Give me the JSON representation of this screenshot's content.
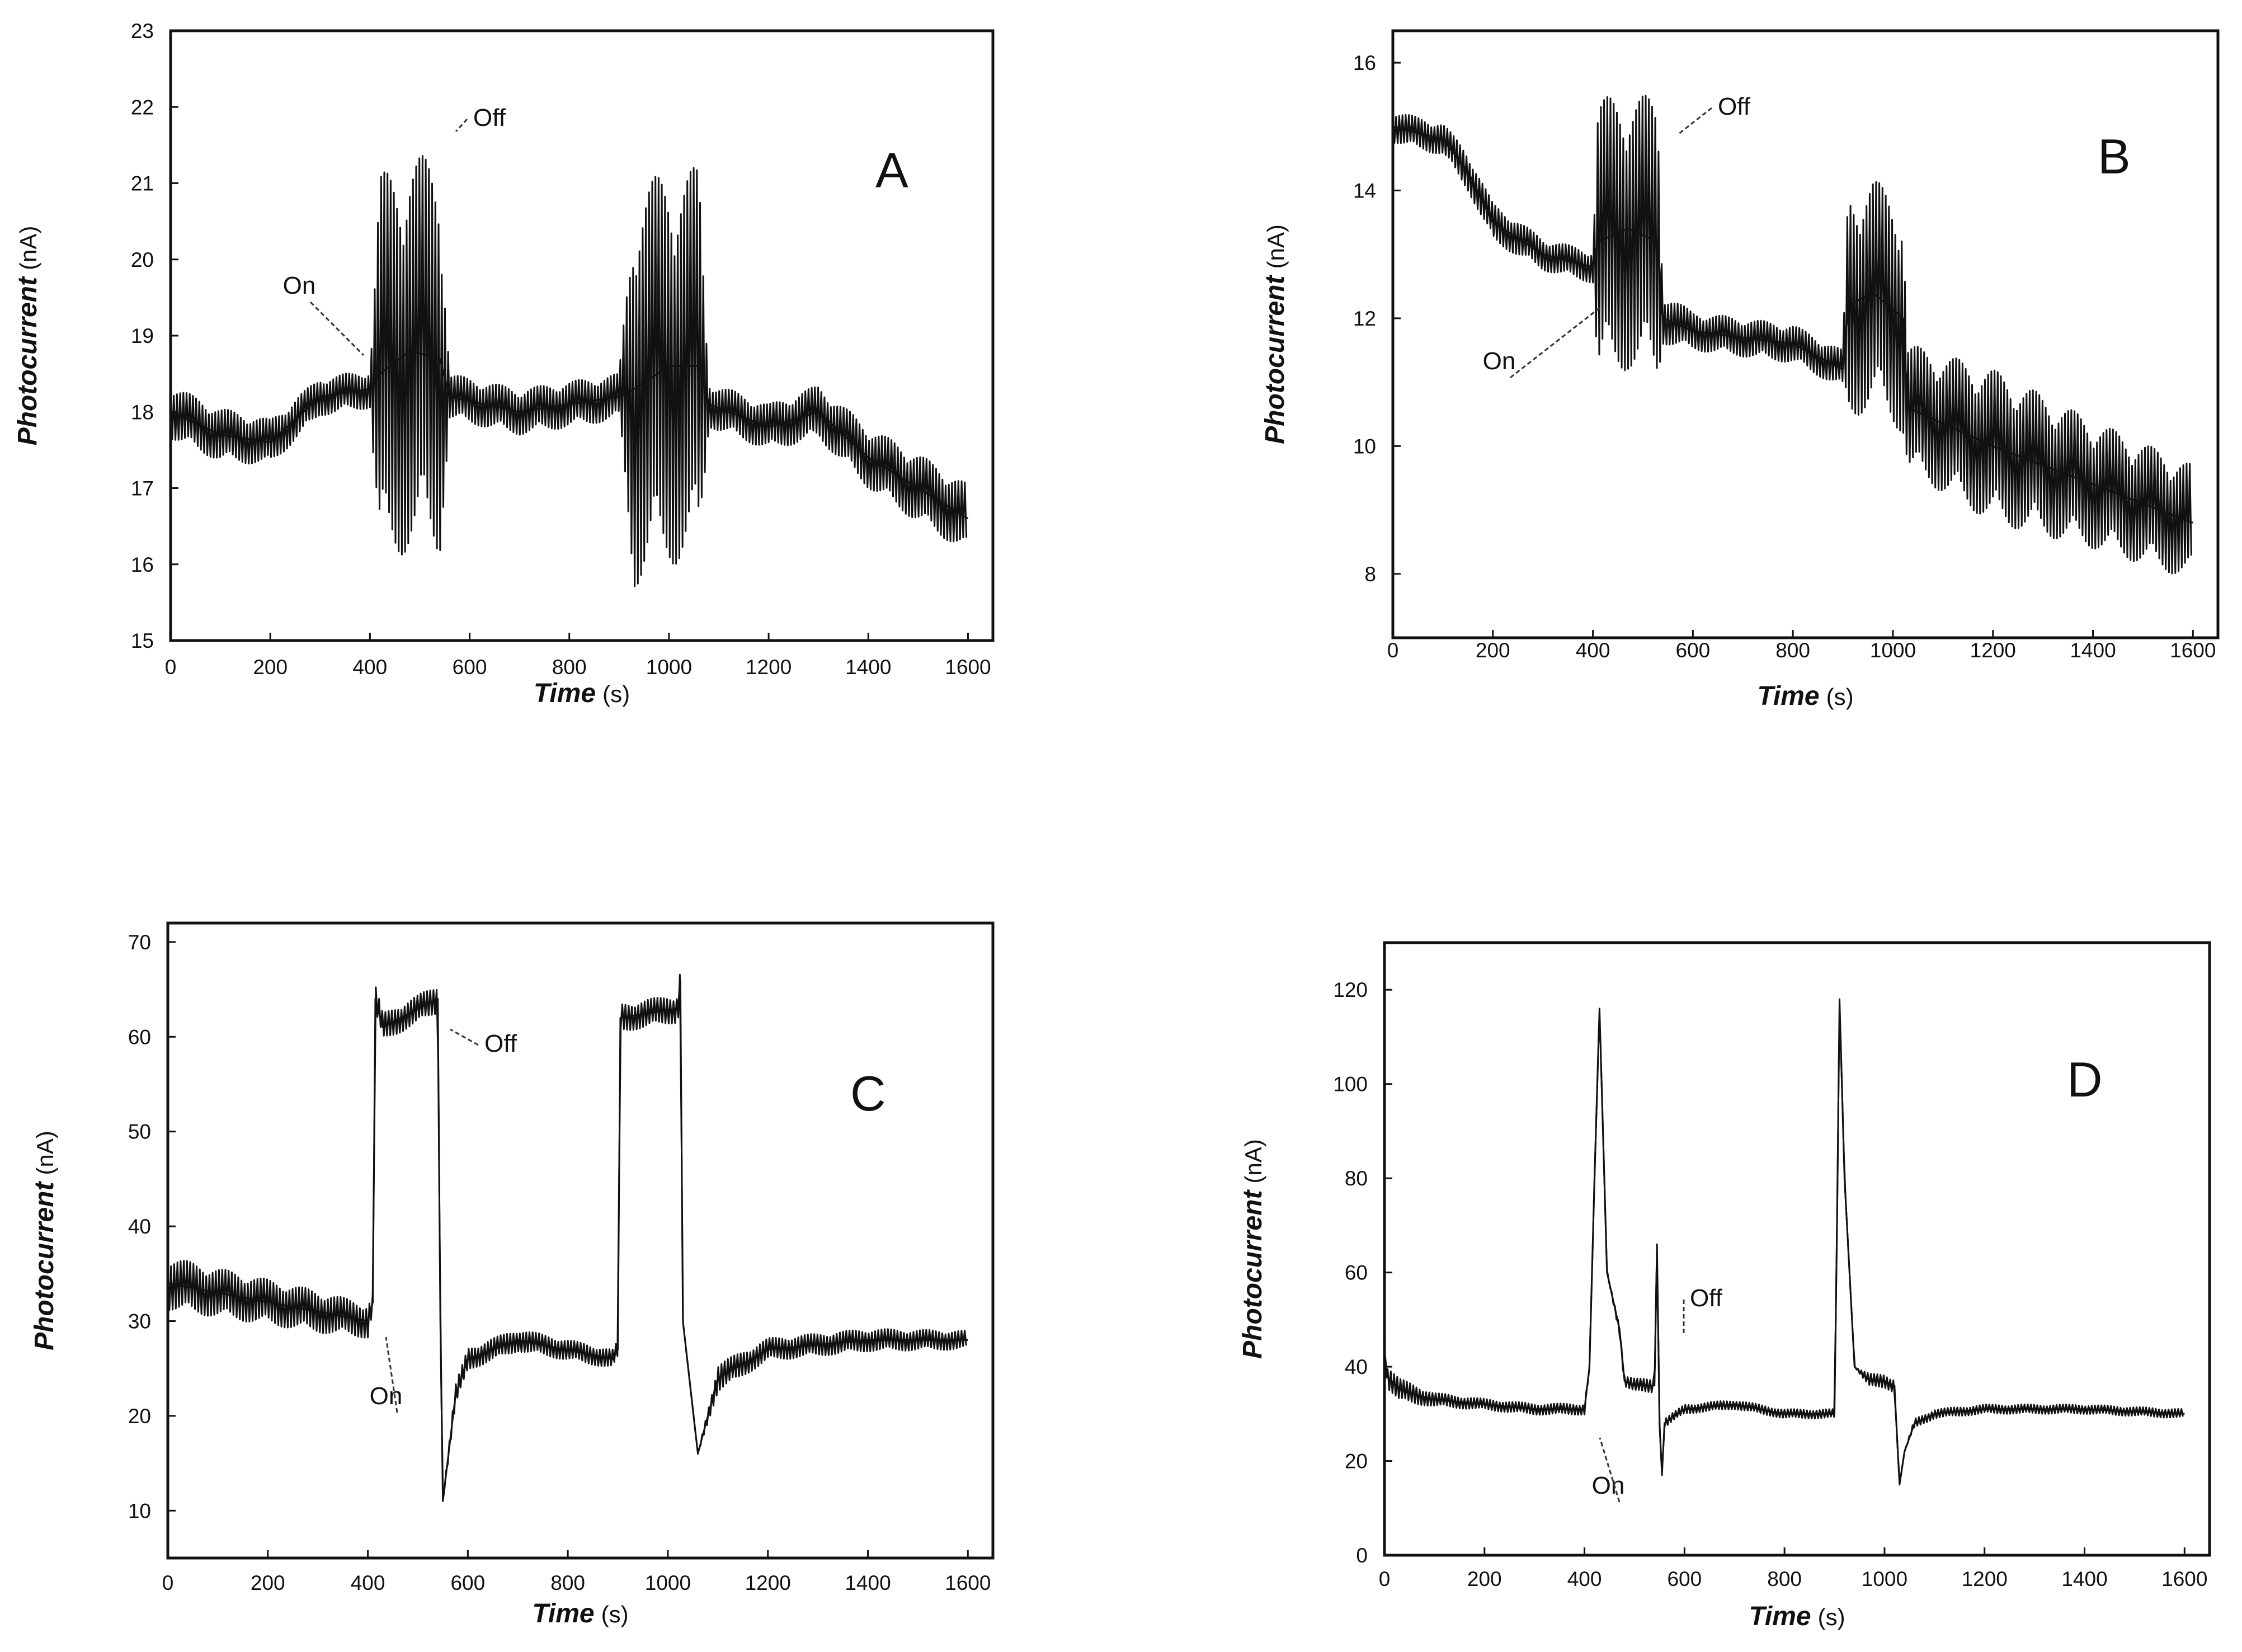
{
  "figure": {
    "panels_count": 4
  },
  "chart_data": [
    {
      "panel": "A",
      "type": "line",
      "xlabel": "Time",
      "xunit": "(s)",
      "ylabel": "Photocurrent",
      "yunit": "(nA)",
      "xlim": [
        0,
        1650
      ],
      "ylim": [
        15,
        23
      ],
      "xticks": [
        0,
        200,
        400,
        600,
        800,
        1000,
        1200,
        1400,
        1600
      ],
      "yticks": [
        15,
        16,
        17,
        18,
        19,
        20,
        21,
        22,
        23
      ],
      "grid": false,
      "annotations": [
        {
          "text": "On",
          "x": 420,
          "y": 18.8
        },
        {
          "text": "Off",
          "x": 560,
          "y": 21.7
        }
      ],
      "series": [
        {
          "x": [
            0,
            100,
            200,
            300,
            400,
            420,
            480,
            540,
            560,
            700,
            900,
            930,
            1000,
            1060,
            1080,
            1200,
            1300,
            1400,
            1500,
            1600
          ],
          "y": [
            18.0,
            17.7,
            17.6,
            18.2,
            18.3,
            18.5,
            18.8,
            18.7,
            18.2,
            18.0,
            18.2,
            18.3,
            18.6,
            18.6,
            18.1,
            17.8,
            18.0,
            17.4,
            17.0,
            16.6
          ],
          "noise": [
            0.35,
            0.35,
            0.3,
            0.25,
            0.25,
            2.6,
            2.6,
            2.6,
            0.3,
            0.3,
            0.3,
            2.6,
            2.6,
            2.6,
            0.3,
            0.3,
            0.35,
            0.4,
            0.45,
            0.45
          ]
        }
      ]
    },
    {
      "panel": "B",
      "type": "line",
      "xlabel": "Time",
      "xunit": "(s)",
      "ylabel": "Photocurrent",
      "yunit": "(nA)",
      "xlim": [
        0,
        1650
      ],
      "ylim": [
        7,
        16.5
      ],
      "xticks": [
        0,
        200,
        400,
        600,
        800,
        1000,
        1200,
        1400,
        1600
      ],
      "yticks": [
        8,
        10,
        12,
        14,
        16
      ],
      "grid": false,
      "annotations": [
        {
          "text": "On",
          "x": 410,
          "y": 12.5
        },
        {
          "text": "Off",
          "x": 560,
          "y": 15.3
        }
      ],
      "series": [
        {
          "x": [
            0,
            100,
            150,
            200,
            300,
            400,
            410,
            470,
            530,
            540,
            600,
            800,
            900,
            910,
            960,
            1020,
            1030,
            1200,
            1400,
            1600
          ],
          "y": [
            15.0,
            14.8,
            14.3,
            13.5,
            13.0,
            12.8,
            13.2,
            13.4,
            13.2,
            12.0,
            11.8,
            11.6,
            11.2,
            12.2,
            12.4,
            12.0,
            10.6,
            10.0,
            9.4,
            8.8
          ],
          "noise": [
            0.25,
            0.25,
            0.3,
            0.3,
            0.25,
            0.25,
            2.2,
            2.2,
            2.2,
            0.4,
            0.3,
            0.3,
            0.3,
            1.8,
            1.8,
            1.8,
            1.0,
            1.2,
            1.0,
            0.9
          ]
        }
      ]
    },
    {
      "panel": "C",
      "type": "line",
      "xlabel": "Time",
      "xunit": "(s)",
      "ylabel": "Photocurrent",
      "yunit": "(nA)",
      "xlim": [
        0,
        1650
      ],
      "ylim": [
        5,
        72
      ],
      "xticks": [
        0,
        200,
        400,
        600,
        800,
        1000,
        1200,
        1400,
        1600
      ],
      "yticks": [
        10,
        20,
        30,
        40,
        50,
        60,
        70
      ],
      "grid": false,
      "annotations": [
        {
          "text": "On",
          "x": 410,
          "y": 29
        },
        {
          "text": "Off",
          "x": 540,
          "y": 63
        }
      ],
      "series": [
        {
          "x": [
            0,
            100,
            200,
            300,
            400,
            410,
            415,
            430,
            540,
            545,
            550,
            575,
            600,
            700,
            890,
            900,
            905,
            1020,
            1025,
            1030,
            1060,
            1100,
            1200,
            1400,
            1600
          ],
          "y": [
            34,
            33,
            32,
            31,
            30,
            32,
            64,
            61,
            64,
            30,
            11,
            22,
            26,
            28,
            26,
            27,
            62,
            63,
            66,
            30,
            16,
            24,
            27,
            28,
            28
          ],
          "noise": [
            2.8,
            2.6,
            2.4,
            2.2,
            1.8,
            1.0,
            1.5,
            1.5,
            1.5,
            0,
            0,
            1.2,
            1.2,
            1.2,
            1.0,
            1.0,
            1.5,
            1.5,
            1.5,
            0,
            0,
            1.5,
            1.2,
            1.2,
            1.0
          ]
        }
      ]
    },
    {
      "panel": "D",
      "type": "line",
      "xlabel": "Time",
      "xunit": "(s)",
      "ylabel": "Photocurrent",
      "yunit": "(nA)",
      "xlim": [
        0,
        1650
      ],
      "ylim": [
        0,
        130
      ],
      "xticks": [
        0,
        200,
        400,
        600,
        800,
        1000,
        1200,
        1400,
        1600
      ],
      "yticks": [
        0,
        20,
        40,
        60,
        80,
        100,
        120
      ],
      "grid": false,
      "annotations": [
        {
          "text": "On",
          "x": 420,
          "y": 30
        },
        {
          "text": "Off",
          "x": 560,
          "y": 50
        }
      ],
      "series": [
        {
          "x": [
            0,
            5,
            30,
            100,
            200,
            300,
            400,
            410,
            420,
            430,
            445,
            470,
            480,
            500,
            540,
            545,
            550,
            555,
            560,
            600,
            700,
            800,
            900,
            905,
            910,
            920,
            940,
            970,
            1000,
            1020,
            1025,
            1030,
            1040,
            1060,
            1100,
            1200,
            1400,
            1600
          ],
          "y": [
            44,
            38,
            35,
            33,
            32,
            31,
            31,
            40,
            80,
            116,
            60,
            48,
            37,
            36,
            36,
            66,
            28,
            17,
            28,
            31,
            32,
            30,
            30,
            70,
            118,
            80,
            40,
            37,
            37,
            36,
            25,
            15,
            22,
            28,
            30,
            31,
            31,
            30
          ],
          "noise": [
            2.5,
            2.5,
            2.5,
            1.5,
            1.2,
            1.2,
            1.2,
            0,
            0,
            0,
            0,
            1.2,
            1.2,
            1.5,
            1.5,
            0,
            0,
            0,
            1.0,
            1.0,
            1.0,
            1.0,
            1.0,
            0,
            0,
            0,
            0,
            1.5,
            1.5,
            1.5,
            0,
            0,
            0,
            1.0,
            1.0,
            1.0,
            1.0,
            1.0
          ]
        }
      ]
    }
  ]
}
